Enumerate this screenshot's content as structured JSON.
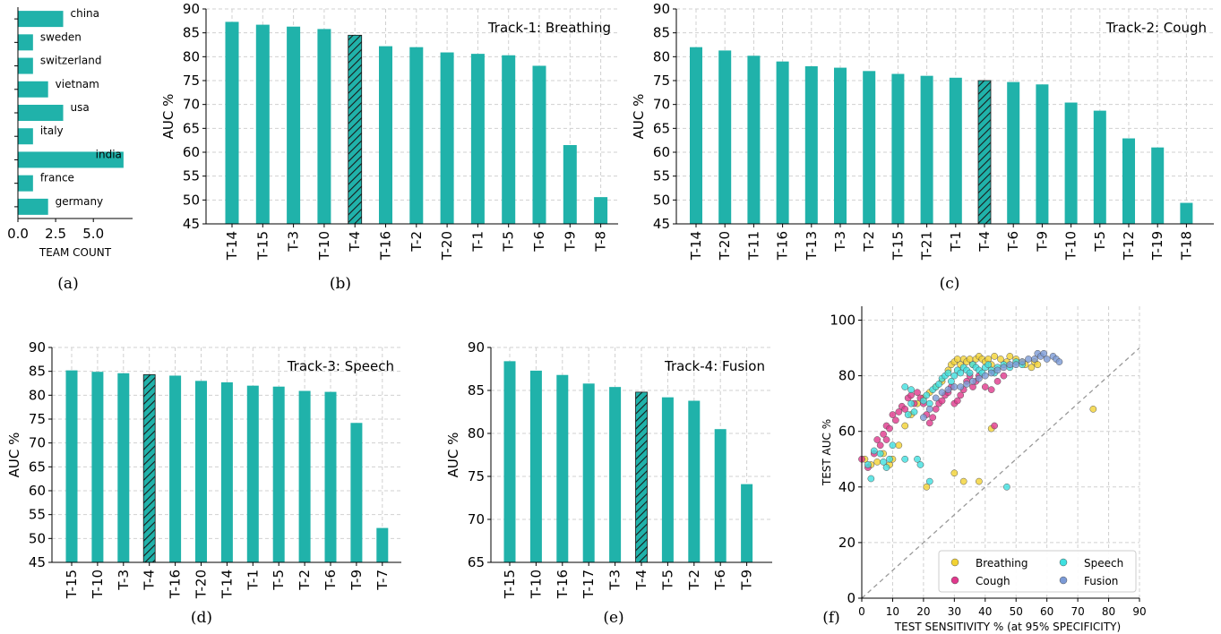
{
  "colors": {
    "bar": "#20b2aa",
    "highlight_hatch": "#1f6e68",
    "grid": "#d0d0d0",
    "breathing": "#f2d233",
    "cough": "#e0388c",
    "speech": "#3ee0e0",
    "fusion": "#7b9ad6",
    "diagonal": "#999999"
  },
  "chart_data": [
    {
      "id": "a",
      "type": "bar",
      "orientation": "horizontal",
      "caption": "(a)",
      "xlabel": "TEAM COUNT",
      "xticks": [
        "0.0",
        "2.5",
        "5.0"
      ],
      "xlim": [
        0,
        7.6
      ],
      "categories": [
        "china",
        "sweden",
        "switzerland",
        "vietnam",
        "usa",
        "italy",
        "india",
        "france",
        "germany"
      ],
      "values": [
        3,
        1,
        1,
        2,
        3,
        1,
        7,
        1,
        2
      ]
    },
    {
      "id": "b",
      "type": "bar",
      "caption": "(b)",
      "title": "Track-1: Breathing",
      "ylabel": "AUC %",
      "ylim": [
        45,
        90
      ],
      "yticks": [
        "45",
        "50",
        "55",
        "60",
        "65",
        "70",
        "75",
        "80",
        "85",
        "90"
      ],
      "highlight": "T-4",
      "categories": [
        "T-14",
        "T-15",
        "T-3",
        "T-10",
        "T-4",
        "T-16",
        "T-2",
        "T-20",
        "T-1",
        "T-5",
        "T-6",
        "T-9",
        "T-8"
      ],
      "values": [
        87.3,
        86.7,
        86.3,
        85.8,
        84.5,
        82.2,
        82.0,
        80.9,
        80.6,
        80.3,
        78.1,
        61.5,
        50.6
      ]
    },
    {
      "id": "c",
      "type": "bar",
      "caption": "(c)",
      "title": "Track-2: Cough",
      "ylabel": "AUC %",
      "ylim": [
        45,
        90
      ],
      "yticks": [
        "45",
        "50",
        "55",
        "60",
        "65",
        "70",
        "75",
        "80",
        "85",
        "90"
      ],
      "highlight": "T-4",
      "categories": [
        "T-14",
        "T-20",
        "T-11",
        "T-16",
        "T-13",
        "T-3",
        "T-2",
        "T-15",
        "T-21",
        "T-1",
        "T-4",
        "T-6",
        "T-9",
        "T-10",
        "T-5",
        "T-12",
        "T-19",
        "T-18"
      ],
      "values": [
        82.0,
        81.3,
        80.2,
        79.0,
        78.0,
        77.7,
        77.0,
        76.4,
        76.0,
        75.6,
        75.0,
        74.7,
        74.2,
        70.4,
        68.7,
        62.9,
        61.0,
        49.4
      ]
    },
    {
      "id": "d",
      "type": "bar",
      "caption": "(d)",
      "title": "Track-3: Speech",
      "ylabel": "AUC %",
      "ylim": [
        45,
        90
      ],
      "yticks": [
        "45",
        "50",
        "55",
        "60",
        "65",
        "70",
        "75",
        "80",
        "85",
        "90"
      ],
      "highlight": "T-4",
      "categories": [
        "T-15",
        "T-10",
        "T-3",
        "T-4",
        "T-16",
        "T-20",
        "T-14",
        "T-1",
        "T-5",
        "T-2",
        "T-6",
        "T-9",
        "T-7"
      ],
      "values": [
        85.2,
        84.9,
        84.6,
        84.3,
        84.1,
        83.0,
        82.7,
        82.0,
        81.8,
        80.9,
        80.7,
        74.2,
        52.2
      ]
    },
    {
      "id": "e",
      "type": "bar",
      "caption": "(e)",
      "title": "Track-4: Fusion",
      "ylabel": "AUC %",
      "ylim": [
        65,
        90
      ],
      "yticks": [
        "65",
        "70",
        "75",
        "80",
        "85",
        "90"
      ],
      "highlight": "T-4",
      "categories": [
        "T-15",
        "T-10",
        "T-16",
        "T-17",
        "T-3",
        "T-4",
        "T-5",
        "T-2",
        "T-6",
        "T-9"
      ],
      "values": [
        88.4,
        87.3,
        86.8,
        85.8,
        85.4,
        84.8,
        84.2,
        83.8,
        80.5,
        74.1
      ]
    },
    {
      "id": "f",
      "type": "scatter",
      "caption": "(f)",
      "xlabel": "TEST SENSITIVITY % (at 95% SPECIFICITY)",
      "ylabel": "TEST AUC %",
      "xlim": [
        0,
        90
      ],
      "ylim": [
        0,
        105
      ],
      "xticks": [
        "0",
        "10",
        "20",
        "30",
        "40",
        "50",
        "60",
        "70",
        "80",
        "90"
      ],
      "yticks": [
        "0",
        "20",
        "40",
        "60",
        "80",
        "100"
      ],
      "legend": "lower-right",
      "series": [
        {
          "name": "Breathing",
          "color_key": "breathing",
          "points": [
            [
              1,
              50
            ],
            [
              3,
              48
            ],
            [
              5,
              49
            ],
            [
              7,
              52
            ],
            [
              9,
              48
            ],
            [
              10,
              50
            ],
            [
              12,
              55
            ],
            [
              14,
              62
            ],
            [
              16,
              66
            ],
            [
              18,
              70
            ],
            [
              20,
              72
            ],
            [
              22,
              74
            ],
            [
              24,
              76
            ],
            [
              26,
              78
            ],
            [
              28,
              82
            ],
            [
              29,
              84
            ],
            [
              30,
              85
            ],
            [
              31,
              86
            ],
            [
              32,
              84
            ],
            [
              33,
              86
            ],
            [
              34,
              85
            ],
            [
              35,
              86
            ],
            [
              36,
              84
            ],
            [
              37,
              86
            ],
            [
              38,
              87
            ],
            [
              39,
              86
            ],
            [
              40,
              85
            ],
            [
              41,
              86
            ],
            [
              42,
              84
            ],
            [
              43,
              87
            ],
            [
              45,
              86
            ],
            [
              47,
              85
            ],
            [
              48,
              87
            ],
            [
              50,
              86
            ],
            [
              52,
              85
            ],
            [
              53,
              84
            ],
            [
              55,
              83
            ],
            [
              56,
              85
            ],
            [
              57,
              84
            ],
            [
              75,
              68
            ],
            [
              42,
              61
            ],
            [
              30,
              45
            ],
            [
              33,
              42
            ],
            [
              38,
              42
            ],
            [
              21,
              40
            ]
          ]
        },
        {
          "name": "Cough",
          "color_key": "cough",
          "points": [
            [
              0,
              50
            ],
            [
              2,
              47
            ],
            [
              4,
              52
            ],
            [
              5,
              57
            ],
            [
              6,
              55
            ],
            [
              7,
              59
            ],
            [
              8,
              57
            ],
            [
              8,
              62
            ],
            [
              9,
              61
            ],
            [
              10,
              66
            ],
            [
              11,
              64
            ],
            [
              12,
              67
            ],
            [
              13,
              69
            ],
            [
              14,
              68
            ],
            [
              15,
              72
            ],
            [
              16,
              73
            ],
            [
              17,
              70
            ],
            [
              18,
              74
            ],
            [
              19,
              72
            ],
            [
              20,
              70
            ],
            [
              21,
              66
            ],
            [
              22,
              63
            ],
            [
              23,
              65
            ],
            [
              24,
              68
            ],
            [
              25,
              70
            ],
            [
              26,
              71
            ],
            [
              27,
              73
            ],
            [
              28,
              74
            ],
            [
              29,
              76
            ],
            [
              30,
              70
            ],
            [
              31,
              71
            ],
            [
              32,
              73
            ],
            [
              33,
              75
            ],
            [
              34,
              78
            ],
            [
              35,
              80
            ],
            [
              36,
              76
            ],
            [
              37,
              78
            ],
            [
              38,
              80
            ],
            [
              40,
              76
            ],
            [
              42,
              75
            ],
            [
              44,
              78
            ],
            [
              46,
              80
            ],
            [
              43,
              62
            ]
          ]
        },
        {
          "name": "Speech",
          "color_key": "speech",
          "points": [
            [
              2,
              48
            ],
            [
              3,
              43
            ],
            [
              4,
              53
            ],
            [
              6,
              52
            ],
            [
              7,
              49
            ],
            [
              8,
              47
            ],
            [
              9,
              50
            ],
            [
              10,
              55
            ],
            [
              14,
              50
            ],
            [
              15,
              66
            ],
            [
              16,
              70
            ],
            [
              17,
              67
            ],
            [
              18,
              50
            ],
            [
              19,
              48
            ],
            [
              20,
              71
            ],
            [
              21,
              73
            ],
            [
              22,
              70
            ],
            [
              23,
              75
            ],
            [
              24,
              76
            ],
            [
              25,
              77
            ],
            [
              26,
              79
            ],
            [
              27,
              80
            ],
            [
              28,
              81
            ],
            [
              29,
              78
            ],
            [
              30,
              80
            ],
            [
              31,
              82
            ],
            [
              32,
              81
            ],
            [
              33,
              83
            ],
            [
              34,
              82
            ],
            [
              35,
              81
            ],
            [
              36,
              84
            ],
            [
              37,
              83
            ],
            [
              38,
              82
            ],
            [
              39,
              81
            ],
            [
              40,
              83
            ],
            [
              41,
              84
            ],
            [
              42,
              82
            ],
            [
              43,
              81
            ],
            [
              44,
              83
            ],
            [
              46,
              84
            ],
            [
              48,
              83
            ],
            [
              50,
              85
            ],
            [
              52,
              84
            ],
            [
              22,
              42
            ],
            [
              47,
              40
            ],
            [
              14,
              76
            ],
            [
              16,
              75
            ]
          ]
        },
        {
          "name": "Fusion",
          "color_key": "fusion",
          "points": [
            [
              20,
              65
            ],
            [
              22,
              68
            ],
            [
              24,
              72
            ],
            [
              26,
              74
            ],
            [
              28,
              75
            ],
            [
              30,
              76
            ],
            [
              32,
              76
            ],
            [
              34,
              77
            ],
            [
              36,
              78
            ],
            [
              38,
              79
            ],
            [
              40,
              80
            ],
            [
              42,
              81
            ],
            [
              44,
              82
            ],
            [
              46,
              83
            ],
            [
              48,
              84
            ],
            [
              50,
              84
            ],
            [
              52,
              85
            ],
            [
              54,
              86
            ],
            [
              56,
              86
            ],
            [
              57,
              88
            ],
            [
              58,
              87
            ],
            [
              59,
              88
            ],
            [
              60,
              86
            ],
            [
              62,
              87
            ],
            [
              63,
              86
            ],
            [
              64,
              85
            ]
          ]
        }
      ]
    }
  ]
}
